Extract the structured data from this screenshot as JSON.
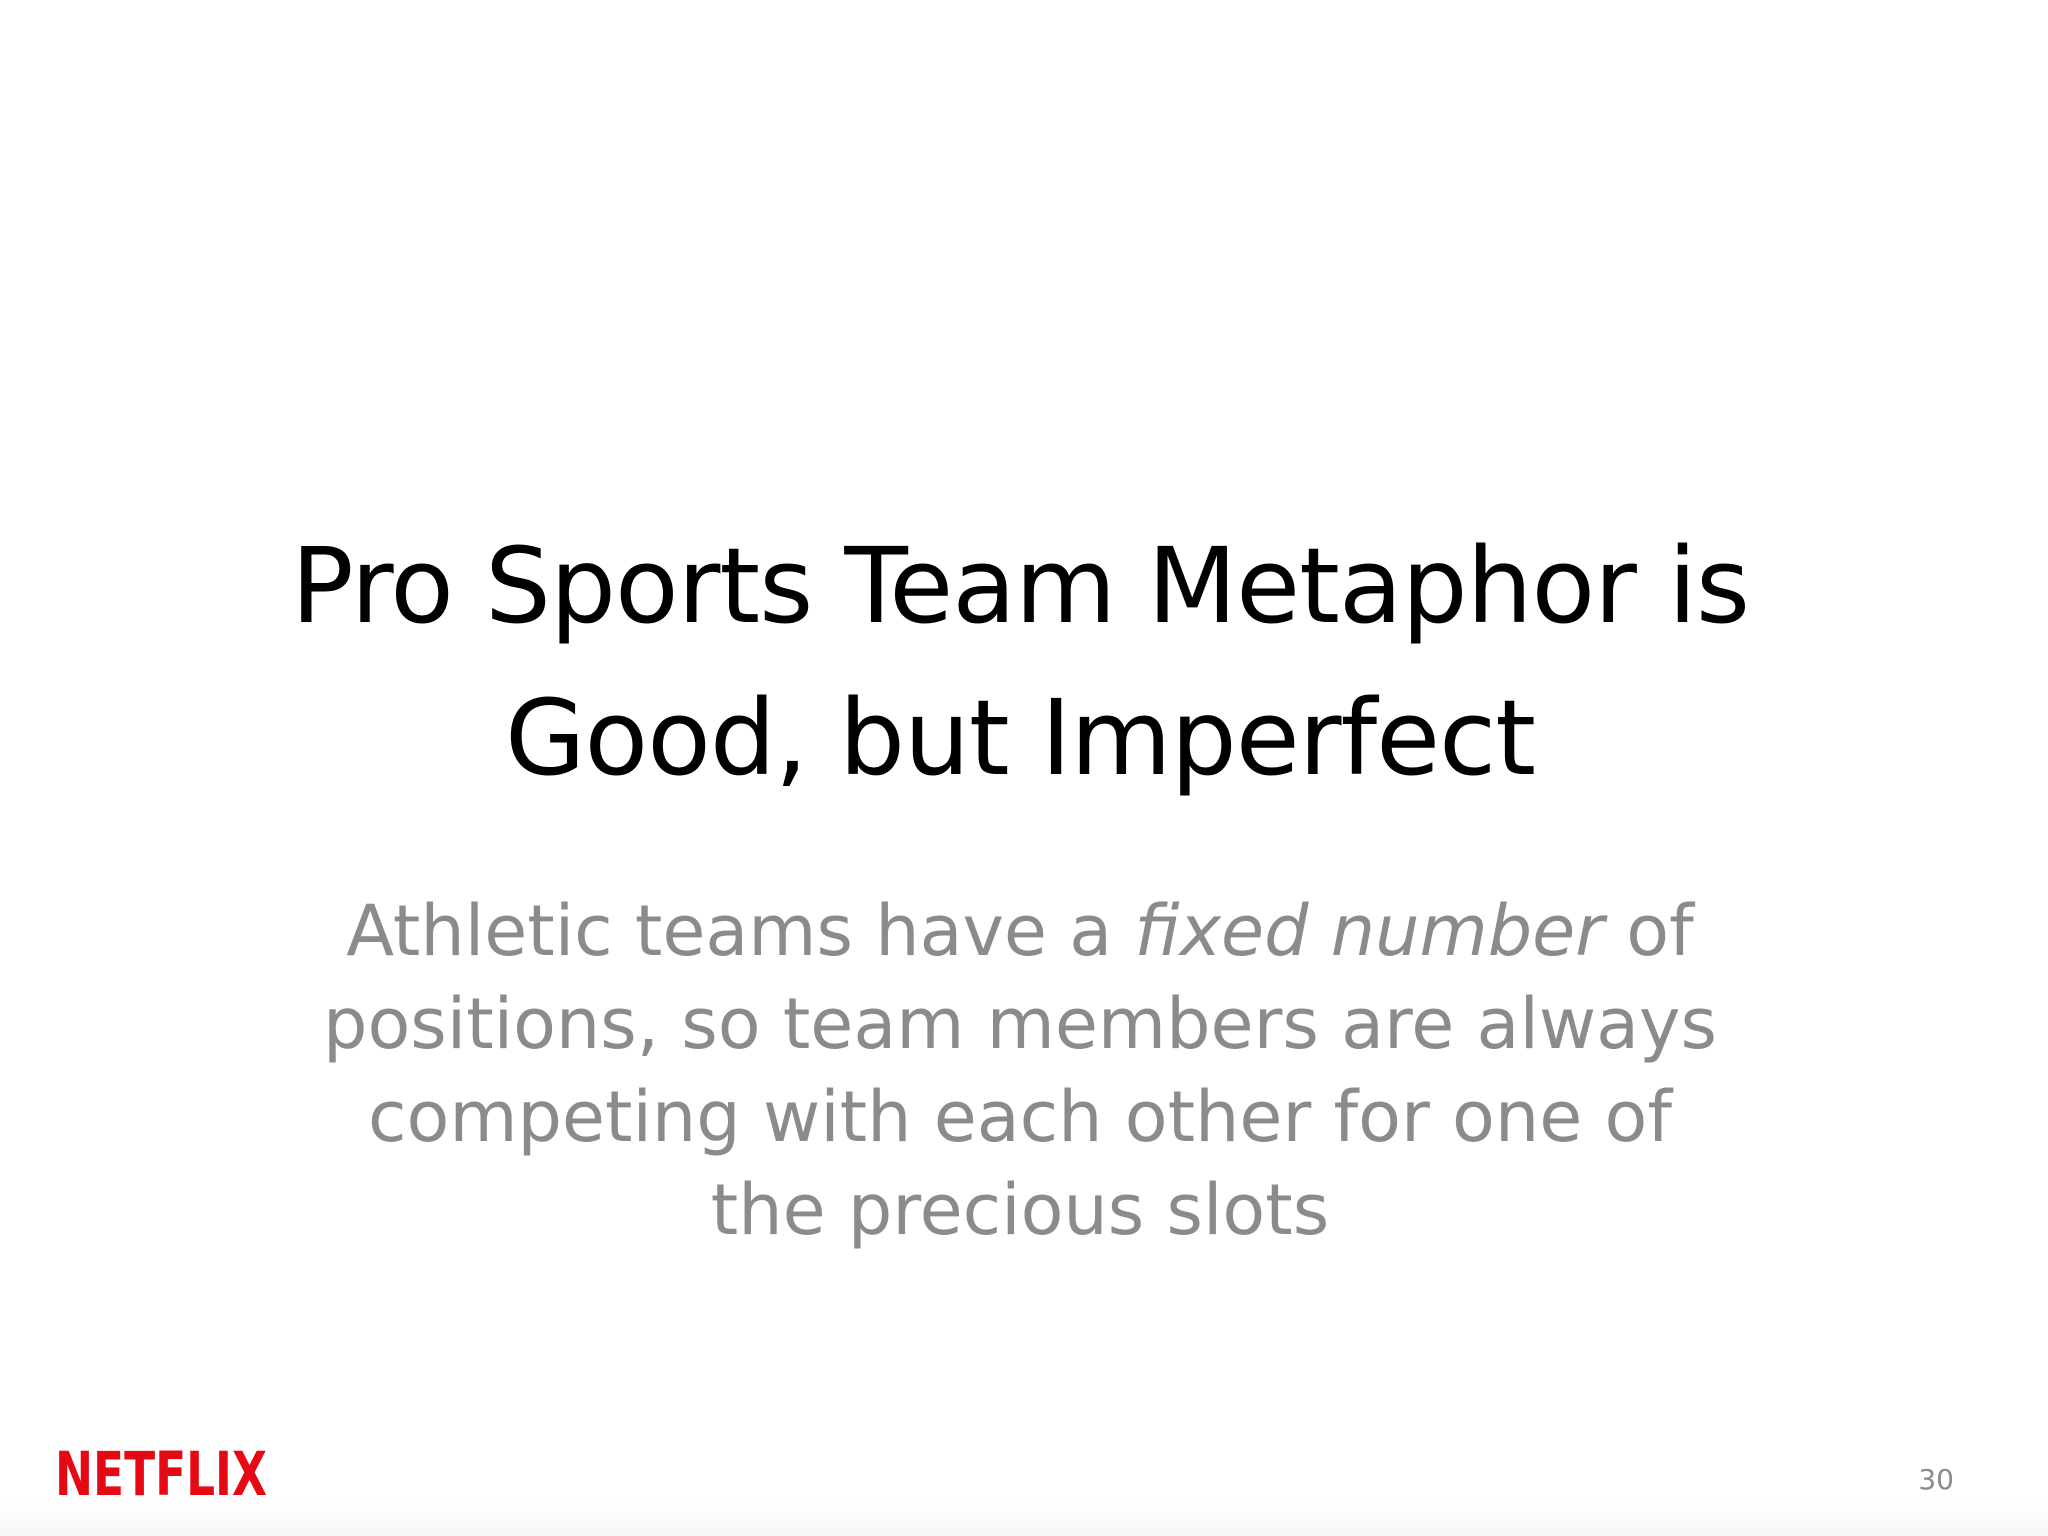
{
  "slide": {
    "title_lines": [
      "Pro Sports Team Metaphor is",
      "Good, but Imperfect"
    ],
    "body": {
      "line1_before": "Athletic teams have a ",
      "line1_emphasis": "fixed number",
      "line1_after": " of",
      "line2": "positions, so team members are always",
      "line3": "competing with each other for one of",
      "line4": "the precious slots"
    },
    "logo_text": "NETFLIX",
    "page_number": "30"
  },
  "colors": {
    "title": "#000000",
    "body": "#8b8b8b",
    "brand_red": "#e50914"
  }
}
